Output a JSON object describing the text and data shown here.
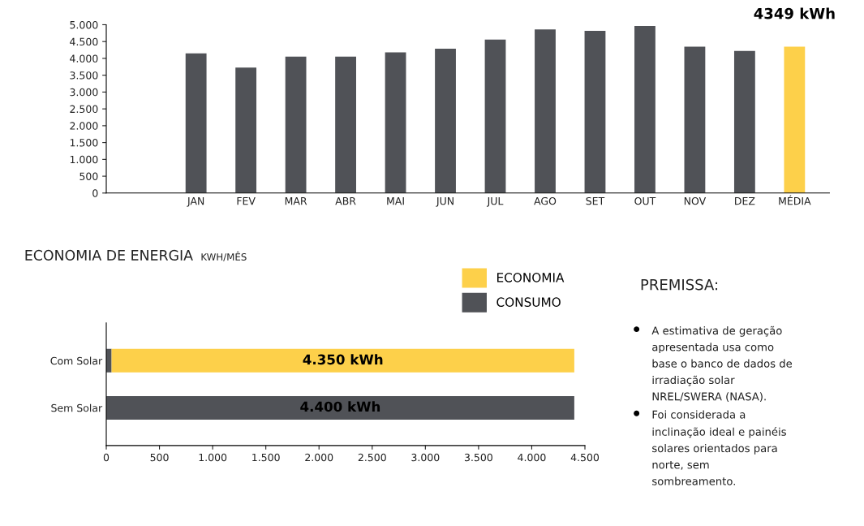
{
  "chart_data": [
    {
      "type": "bar",
      "categories": [
        "JAN",
        "FEV",
        "MAR",
        "ABR",
        "MAI",
        "JUN",
        "JUL",
        "AGO",
        "SET",
        "OUT",
        "NOV",
        "DEZ",
        "MÉDIA"
      ],
      "values": [
        4150,
        3730,
        4050,
        4050,
        4180,
        4290,
        4560,
        4860,
        4820,
        4960,
        4350,
        4220,
        4349
      ],
      "colors": [
        "#505257",
        "#505257",
        "#505257",
        "#505257",
        "#505257",
        "#505257",
        "#505257",
        "#505257",
        "#505257",
        "#505257",
        "#505257",
        "#505257",
        "#fdd04a"
      ],
      "value_labels": [
        null,
        null,
        null,
        null,
        null,
        null,
        null,
        null,
        null,
        null,
        null,
        null,
        "4349 kWh"
      ],
      "ylim": [
        0,
        5000
      ],
      "yticks": [
        {
          "value": 0,
          "label": "0"
        },
        {
          "value": 500,
          "label": "500"
        },
        {
          "value": 1000,
          "label": "1.000"
        },
        {
          "value": 1500,
          "label": "1.500"
        },
        {
          "value": 2000,
          "label": "2.000"
        },
        {
          "value": 2500,
          "label": "2.500"
        },
        {
          "value": 3000,
          "label": "3.000"
        },
        {
          "value": 3500,
          "label": "3.500"
        },
        {
          "value": 4000,
          "label": "4.000"
        },
        {
          "value": 4500,
          "label": "4.500"
        },
        {
          "value": 5000,
          "label": "5.000"
        }
      ],
      "grid": false
    },
    {
      "type": "bar",
      "title": "ECONOMIA DE ENERGIA",
      "subtitle": "KWH/MÊS",
      "orientation": "horizontal",
      "stacked": true,
      "categories": [
        "Com Solar",
        "Sem Solar"
      ],
      "series": [
        {
          "name": "CONSUMO",
          "color": "#505257",
          "values": [
            50,
            4400
          ],
          "value_labels": [
            null,
            "4.400 kWh"
          ]
        },
        {
          "name": "ECONOMIA",
          "color": "#fdd04a",
          "values": [
            4350,
            0
          ],
          "value_labels": [
            "4.350 kWh",
            null
          ]
        }
      ],
      "xlim": [
        0,
        4500
      ],
      "xticks": [
        {
          "value": 0,
          "label": "0"
        },
        {
          "value": 500,
          "label": "500"
        },
        {
          "value": 1000,
          "label": "1.000"
        },
        {
          "value": 1500,
          "label": "1.500"
        },
        {
          "value": 2000,
          "label": "2.000"
        },
        {
          "value": 2500,
          "label": "2.500"
        },
        {
          "value": 3000,
          "label": "3.000"
        },
        {
          "value": 3500,
          "label": "3.500"
        },
        {
          "value": 4000,
          "label": "4.000"
        },
        {
          "value": 4500,
          "label": "4.500"
        }
      ],
      "grid": false,
      "legend": "top right"
    },
    {
      "type": "other",
      "title": "PREMISSA:",
      "annotations": [
        "A estimativa de geração\napresentada usa como\nbase o banco de dados de\nirradiação solar\nNREL/SWERA (NASA).",
        "Foi considerada a\ninclinação ideal e painéis\nsolares orientados para\nnorte, sem\nsombreamento."
      ]
    }
  ]
}
